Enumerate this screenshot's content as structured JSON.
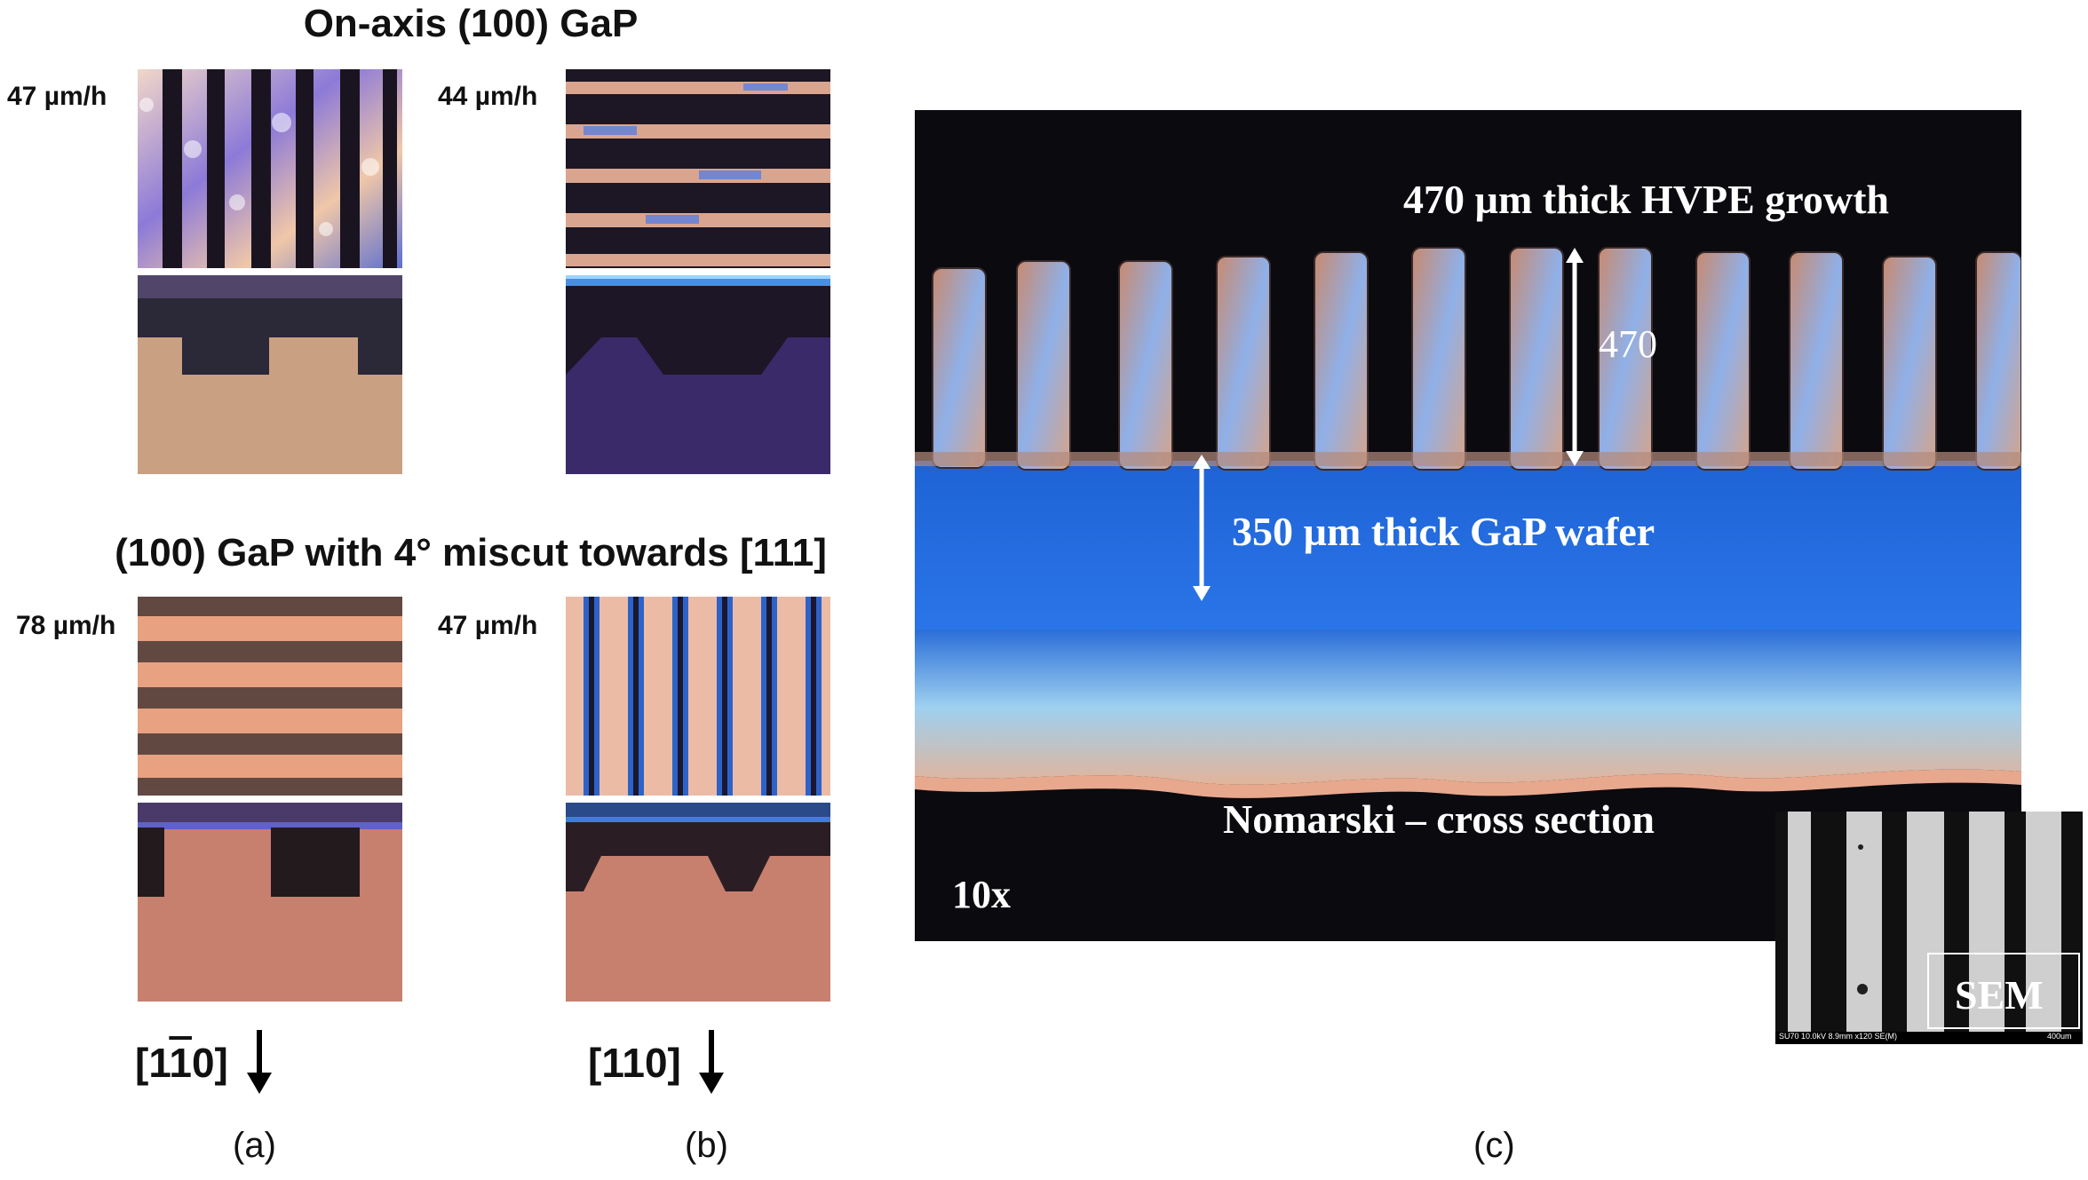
{
  "panel_a_b": {
    "top_heading": "On-axis (100) GaP",
    "bottom_heading": "(100) GaP with 4° miscut towards [111]",
    "rates": {
      "top_left": "47 µm/h",
      "top_right": "44 µm/h",
      "bottom_left": "78 µm/h",
      "bottom_right": "47 µm/h"
    },
    "directions": {
      "a_prefix": "[1",
      "a_bar": "1",
      "a_suffix": "0]",
      "b": "[110]"
    },
    "letters": {
      "a": "(a)",
      "b": "(b)",
      "c": "(c)"
    }
  },
  "panel_c": {
    "growth_label": "470 µm thick HVPE growth",
    "thickness_value": "470",
    "wafer_label": "350 µm thick GaP wafer",
    "method_label": "Nomarski – cross section",
    "magnification": "10x",
    "sem_label": "SEM",
    "sem_footer_left": "SU70 10.0kV 8.9mm x120 SE(M)",
    "sem_footer_right": "400um"
  },
  "colors": {
    "wafer_blue": "#1e63d6",
    "background_black": "#0a0a0f",
    "growth_copper": "#c88a70"
  }
}
